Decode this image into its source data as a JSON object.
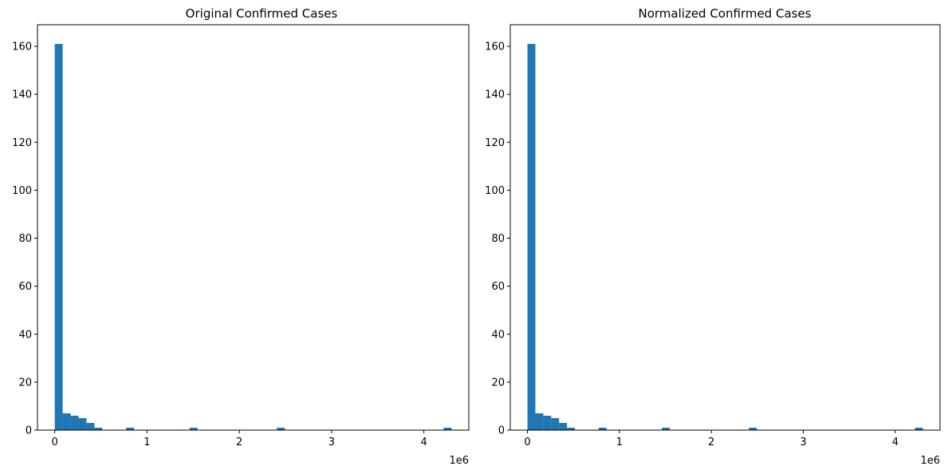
{
  "chart_data": [
    {
      "type": "bar",
      "title": "Original Confirmed Cases",
      "xlabel": "",
      "ylabel": "",
      "x_offset_label": "1e6",
      "x_scale": 1000000,
      "xlim": [
        -187000,
        4487000
      ],
      "ylim": [
        0,
        169
      ],
      "xticks": [
        0,
        1,
        2,
        3,
        4
      ],
      "yticks": [
        0,
        20,
        40,
        60,
        80,
        100,
        120,
        140,
        160
      ],
      "bar_color": "#1f77b4",
      "bin_start": 0,
      "bin_width": 86000,
      "values": [
        161,
        7,
        6,
        5,
        3,
        1,
        0,
        0,
        0,
        1,
        0,
        0,
        0,
        0,
        0,
        0,
        0,
        1,
        0,
        0,
        0,
        0,
        0,
        0,
        0,
        0,
        0,
        0,
        1,
        0,
        0,
        0,
        0,
        0,
        0,
        0,
        0,
        0,
        0,
        0,
        0,
        0,
        0,
        0,
        0,
        0,
        0,
        0,
        0,
        1
      ],
      "grid": false
    },
    {
      "type": "bar",
      "title": "Normalized Confirmed Cases",
      "xlabel": "",
      "ylabel": "",
      "x_offset_label": "1e6",
      "x_scale": 1000000,
      "xlim": [
        -187000,
        4487000
      ],
      "ylim": [
        0,
        169
      ],
      "xticks": [
        0,
        1,
        2,
        3,
        4
      ],
      "yticks": [
        0,
        20,
        40,
        60,
        80,
        100,
        120,
        140,
        160
      ],
      "bar_color": "#1f77b4",
      "bin_start": 0,
      "bin_width": 86000,
      "values": [
        161,
        7,
        6,
        5,
        3,
        1,
        0,
        0,
        0,
        1,
        0,
        0,
        0,
        0,
        0,
        0,
        0,
        1,
        0,
        0,
        0,
        0,
        0,
        0,
        0,
        0,
        0,
        0,
        1,
        0,
        0,
        0,
        0,
        0,
        0,
        0,
        0,
        0,
        0,
        0,
        0,
        0,
        0,
        0,
        0,
        0,
        0,
        0,
        0,
        1
      ],
      "grid": false
    }
  ]
}
